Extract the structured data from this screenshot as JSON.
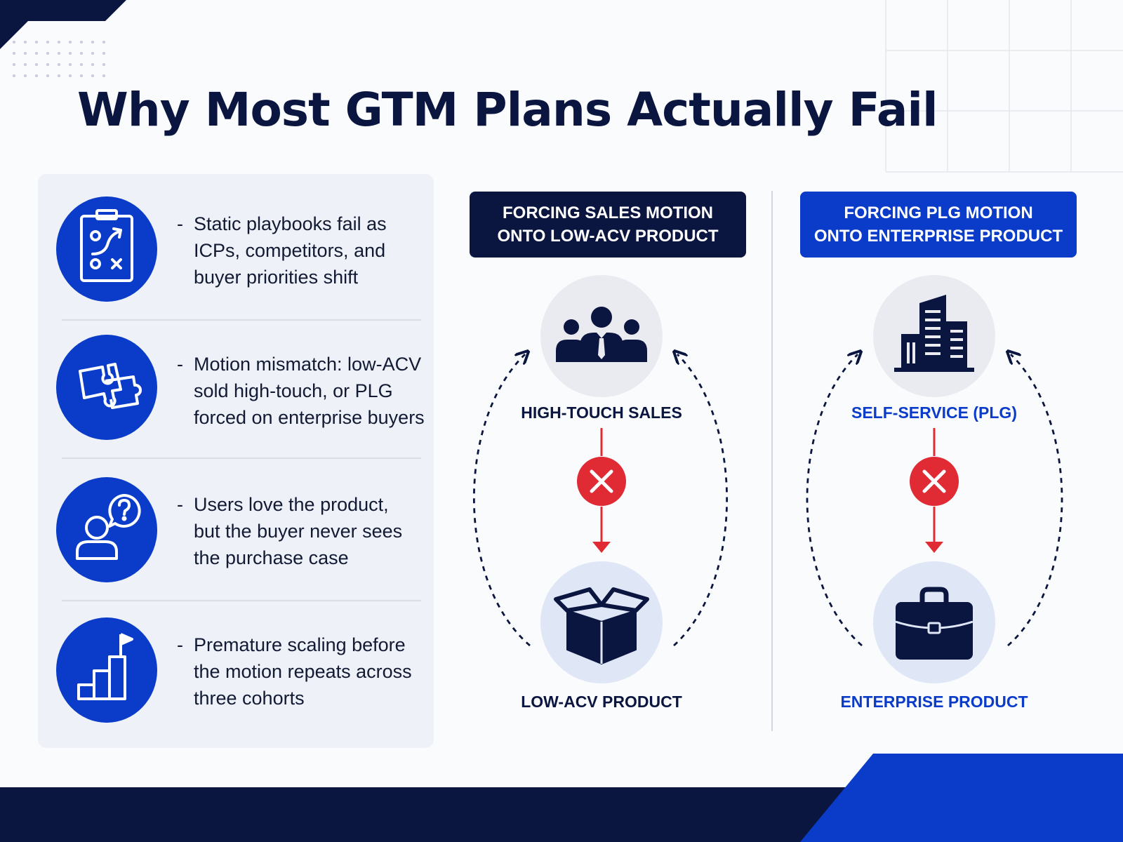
{
  "title": "Why Most GTM Plans Actually Fail",
  "reasons": [
    {
      "bullet": "-",
      "text": "Static playbooks fail as\nICPs, competitors, and\nbuyer priorities shift",
      "icon": "clipboard-play-icon"
    },
    {
      "bullet": "-",
      "text": "Motion mismatch: low-ACV\nsold high-touch, or PLG\nforced on enterprise buyers",
      "icon": "puzzle-pieces-icon"
    },
    {
      "bullet": "-",
      "text": "Users love the product,\nbut the buyer never sees\nthe purchase case",
      "icon": "user-question-icon"
    },
    {
      "bullet": "-",
      "text": "Premature scaling before\nthe motion repeats across\nthree cohorts",
      "icon": "growth-bars-flag-icon"
    }
  ],
  "comparisons": [
    {
      "heading": "FORCING SALES MOTION\nONTO LOW-ACV PRODUCT",
      "top_label": "HIGH-TOUCH SALES",
      "top_icon": "sales-team-icon",
      "bottom_label": "LOW-ACV PRODUCT",
      "bottom_icon": "open-box-icon",
      "fail_icon": "x-mark-icon"
    },
    {
      "heading": "FORCING PLG MOTION\nONTO ENTERPRISE PRODUCT",
      "top_label": "SELF-SERVICE (PLG)",
      "top_icon": "office-building-icon",
      "bottom_label": "ENTERPRISE PRODUCT",
      "bottom_icon": "briefcase-icon",
      "fail_icon": "x-mark-icon"
    }
  ],
  "colors": {
    "navy": "#0b1640",
    "brand_blue": "#0a3cc9",
    "fail_red": "#e02b35",
    "panel": "#eef1f7"
  }
}
